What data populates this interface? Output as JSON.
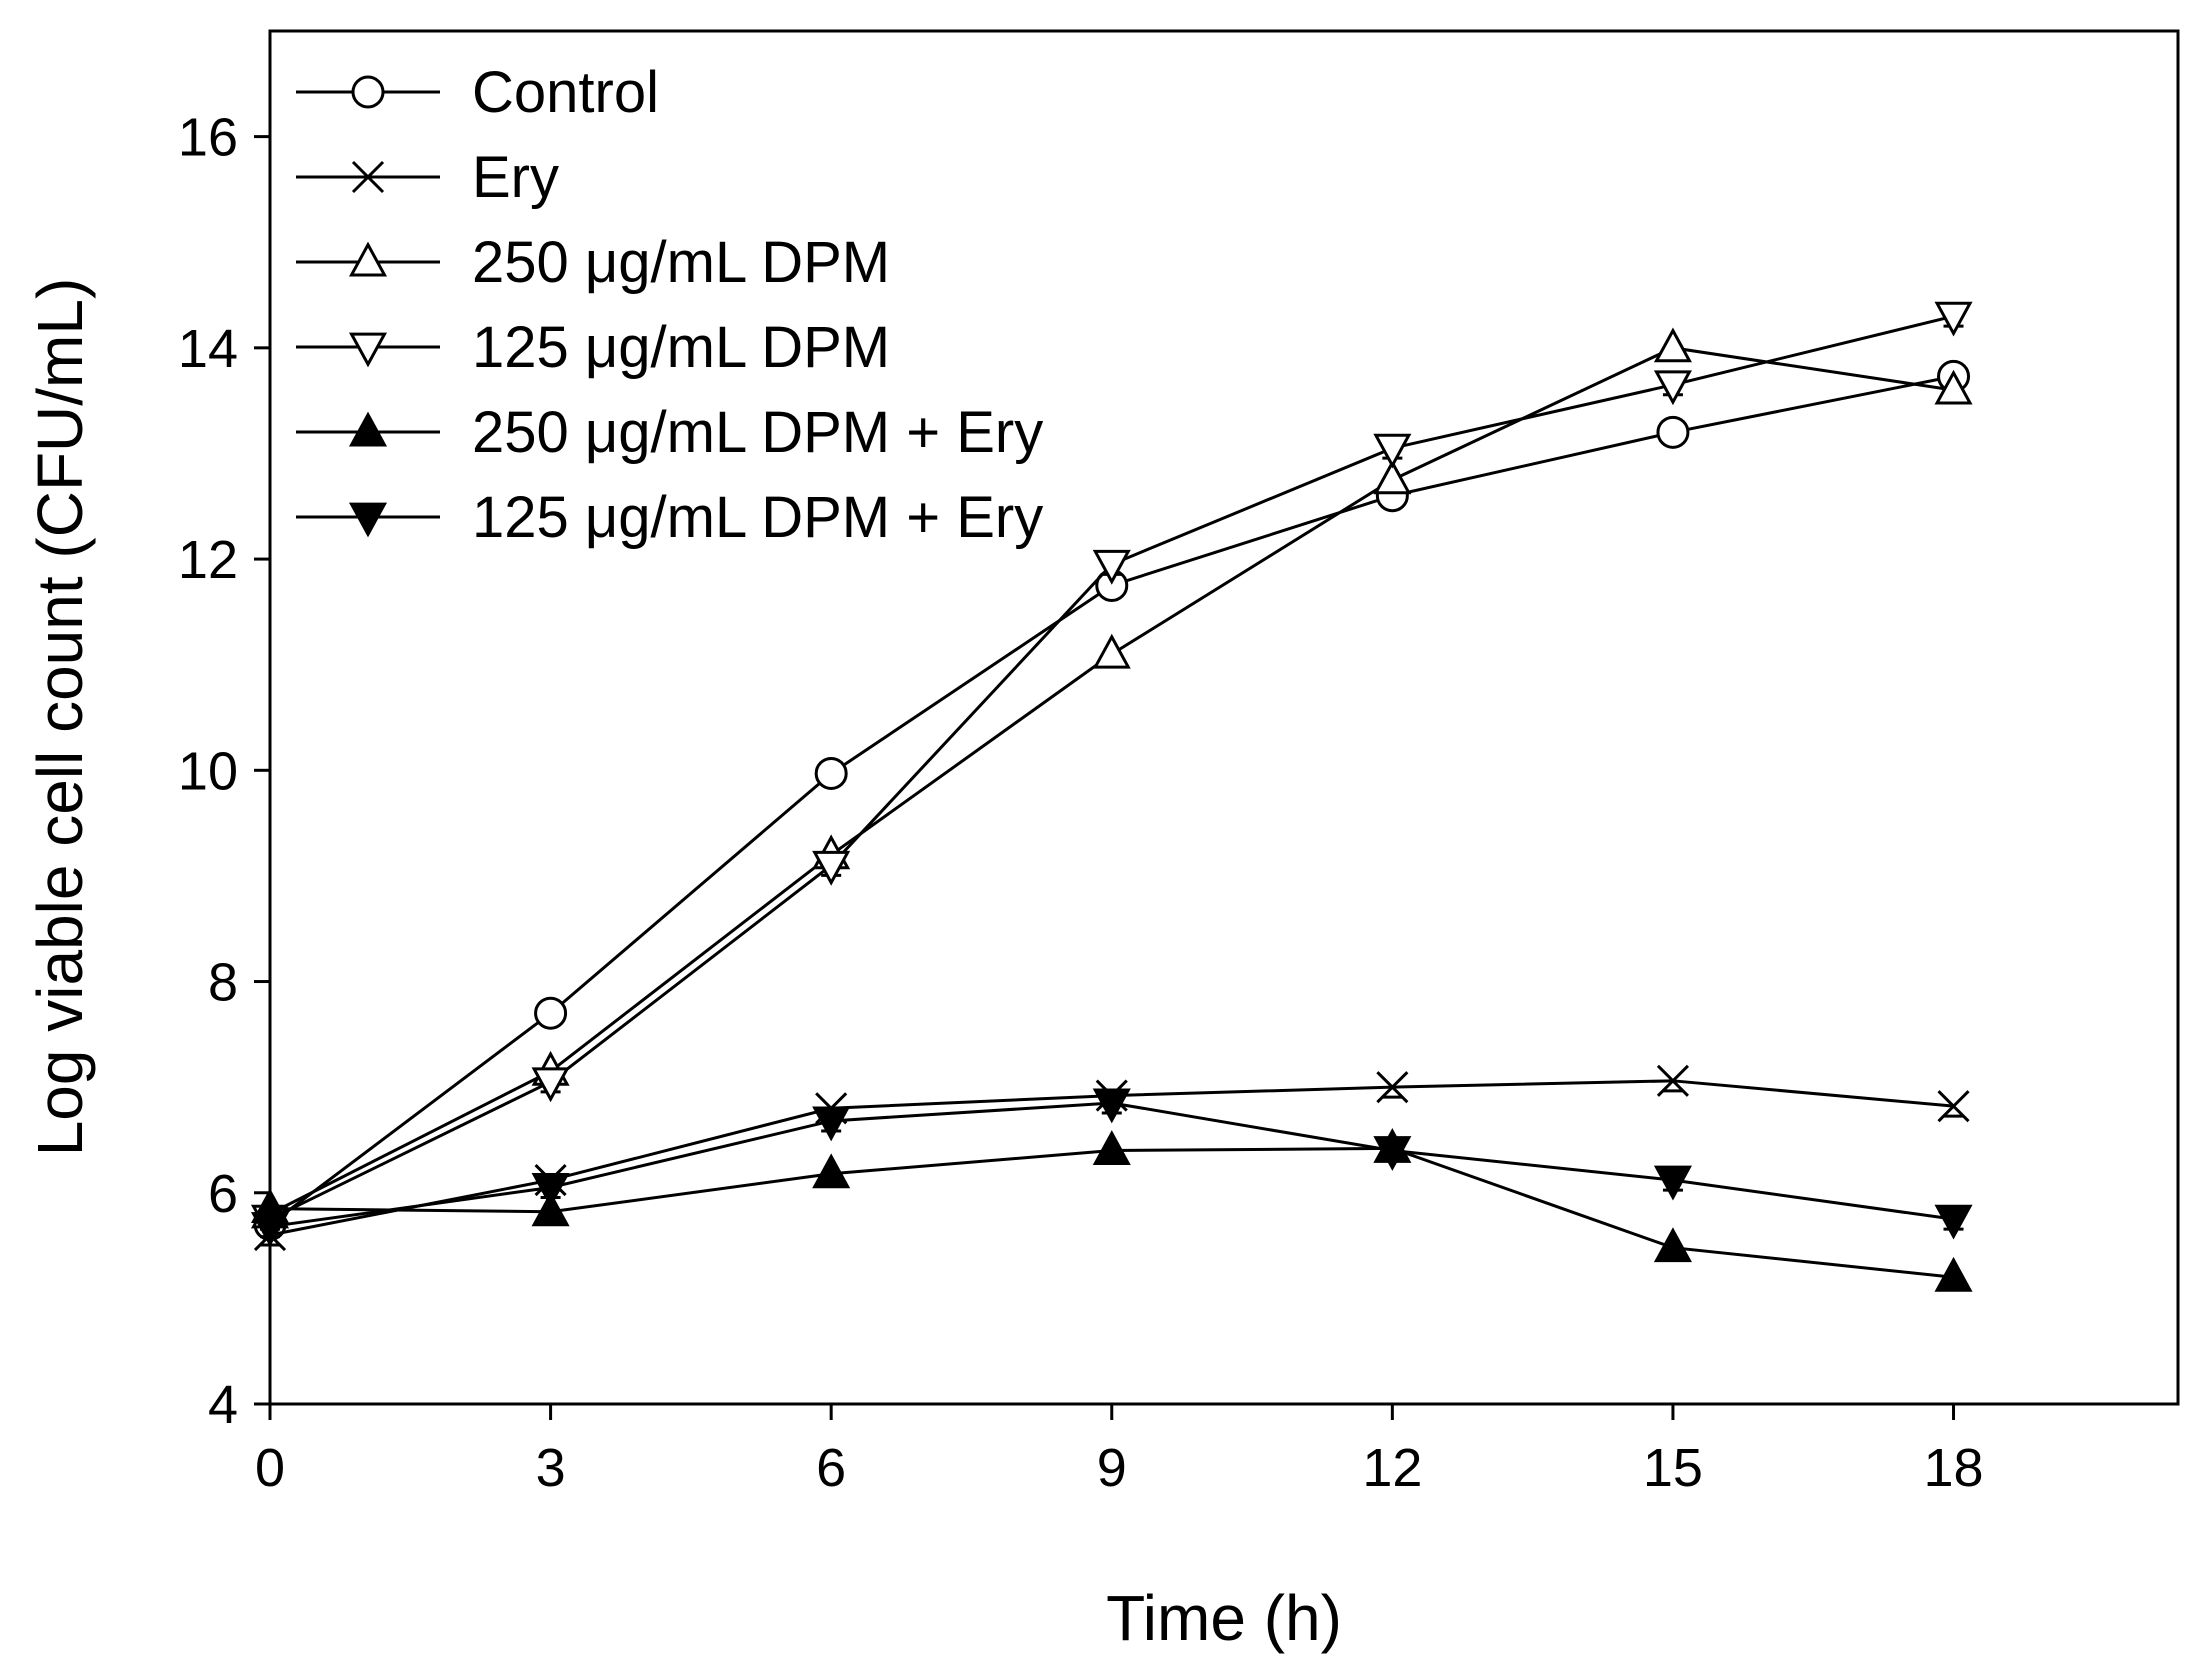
{
  "chart_data": {
    "type": "line",
    "title": "",
    "xlabel": "Time (h)",
    "ylabel": "Log viable cell count (CFU/mL)",
    "xlim": [
      0,
      20.4
    ],
    "ylim": [
      4,
      17
    ],
    "xticks": [
      0,
      3,
      6,
      9,
      12,
      15,
      18
    ],
    "yticks": [
      4,
      6,
      8,
      10,
      12,
      14,
      16
    ],
    "x": [
      0,
      3,
      6,
      9,
      12,
      15,
      18
    ],
    "legend_position": "top-left",
    "series": [
      {
        "name": "Control",
        "marker": "circle-open",
        "values": [
          5.7,
          7.7,
          9.97,
          11.75,
          12.6,
          13.2,
          13.73
        ]
      },
      {
        "name": "Ery",
        "marker": "x",
        "values": [
          5.6,
          6.12,
          6.8,
          6.92,
          7.0,
          7.06,
          6.82
        ]
      },
      {
        "name": "250 μg/mL DPM",
        "marker": "triangle-up-open",
        "values": [
          5.8,
          7.15,
          9.2,
          11.1,
          12.75,
          14.0,
          13.6
        ]
      },
      {
        "name": "125 μg/mL DPM",
        "marker": "triangle-down-open",
        "values": [
          5.75,
          7.05,
          9.1,
          11.95,
          13.05,
          13.65,
          14.3
        ]
      },
      {
        "name": "250 μg/mL DPM + Ery",
        "marker": "triangle-up-filled",
        "values": [
          5.85,
          5.82,
          6.18,
          6.4,
          6.42,
          5.48,
          5.2
        ]
      },
      {
        "name": "125 μg/mL DPM + Ery",
        "marker": "triangle-down-filled",
        "values": [
          5.68,
          6.05,
          6.68,
          6.85,
          6.4,
          6.12,
          5.75
        ]
      }
    ]
  }
}
